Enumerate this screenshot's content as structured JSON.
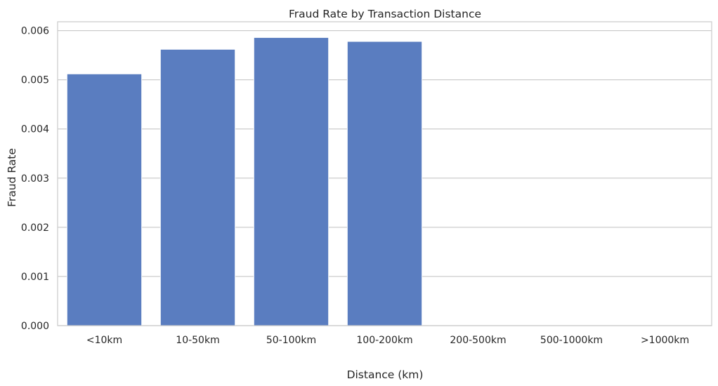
{
  "chart_data": {
    "type": "bar",
    "title": "Fraud Rate by Transaction Distance",
    "xlabel": "Distance (km)",
    "ylabel": "Fraud Rate",
    "categories": [
      "<10km",
      "10-50km",
      "50-100km",
      "100-200km",
      "200-500km",
      "500-1000km",
      ">1000km"
    ],
    "values": [
      0.00512,
      0.00562,
      0.00586,
      0.00578,
      0,
      0,
      0
    ],
    "ylim": [
      0,
      0.00618
    ],
    "yticks": [
      "0.000",
      "0.001",
      "0.002",
      "0.003",
      "0.004",
      "0.005",
      "0.006"
    ],
    "ytick_values": [
      0,
      0.001,
      0.002,
      0.003,
      0.004,
      0.005,
      0.006
    ],
    "grid": true,
    "bar_color": "#5a7dc0",
    "grid_color": "#cccccc"
  }
}
